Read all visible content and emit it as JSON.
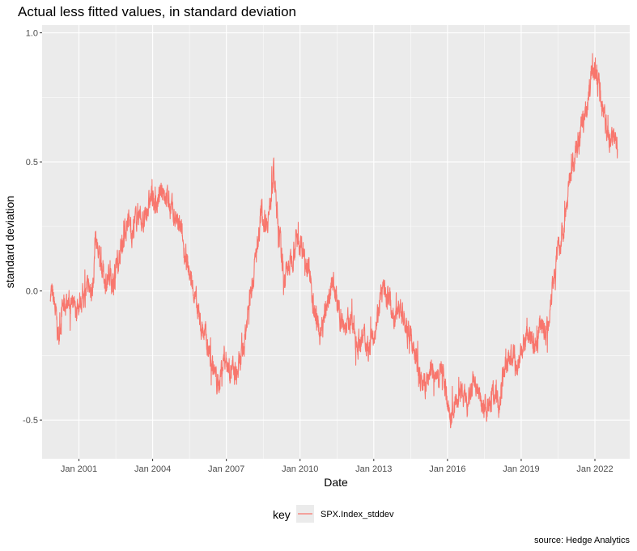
{
  "chart_data": {
    "type": "line",
    "title": "Actual less fitted values, in standard deviation",
    "xlabel": "Date",
    "ylabel": "standard deviation",
    "caption": "source: Hedge Analytics",
    "x_ticks": [
      "Jan 2001",
      "Jan 2004",
      "Jan 2007",
      "Jan 2010",
      "Jan 2013",
      "Jan 2016",
      "Jan 2019",
      "Jan 2022"
    ],
    "y_ticks": [
      "-0.5",
      "0.0",
      "0.5",
      "1.0"
    ],
    "ylim": [
      -0.65,
      1.03
    ],
    "xlim": [
      "1999-07",
      "2023-06"
    ],
    "grid": true,
    "legend": {
      "title": "key",
      "position": "bottom"
    },
    "series": [
      {
        "name": "SPX.Index_stddev",
        "color": "#F8766D",
        "points": [
          [
            "1999-11",
            0.0
          ],
          [
            "2000-01",
            -0.05
          ],
          [
            "2000-03",
            -0.18
          ],
          [
            "2000-05",
            -0.06
          ],
          [
            "2000-08",
            -0.04
          ],
          [
            "2000-11",
            -0.08
          ],
          [
            "2001-02",
            -0.03
          ],
          [
            "2001-05",
            0.0
          ],
          [
            "2001-08",
            0.02
          ],
          [
            "2001-09",
            0.22
          ],
          [
            "2001-11",
            0.12
          ],
          [
            "2002-02",
            0.04
          ],
          [
            "2002-05",
            0.03
          ],
          [
            "2002-08",
            0.12
          ],
          [
            "2002-10",
            0.18
          ],
          [
            "2003-01",
            0.28
          ],
          [
            "2003-03",
            0.22
          ],
          [
            "2003-06",
            0.31
          ],
          [
            "2003-09",
            0.26
          ],
          [
            "2003-12",
            0.36
          ],
          [
            "2004-03",
            0.33
          ],
          [
            "2004-06",
            0.4
          ],
          [
            "2004-09",
            0.34
          ],
          [
            "2004-12",
            0.28
          ],
          [
            "2005-03",
            0.22
          ],
          [
            "2005-06",
            0.1
          ],
          [
            "2005-09",
            0.0
          ],
          [
            "2005-12",
            -0.12
          ],
          [
            "2006-03",
            -0.18
          ],
          [
            "2006-06",
            -0.28
          ],
          [
            "2006-09",
            -0.37
          ],
          [
            "2006-12",
            -0.25
          ],
          [
            "2007-03",
            -0.3
          ],
          [
            "2007-06",
            -0.33
          ],
          [
            "2007-09",
            -0.25
          ],
          [
            "2007-12",
            -0.05
          ],
          [
            "2008-03",
            0.1
          ],
          [
            "2008-06",
            0.3
          ],
          [
            "2008-08",
            0.27
          ],
          [
            "2008-10",
            0.3
          ],
          [
            "2008-12",
            0.47
          ],
          [
            "2009-02",
            0.28
          ],
          [
            "2009-05",
            0.05
          ],
          [
            "2009-08",
            0.1
          ],
          [
            "2009-11",
            0.2
          ],
          [
            "2010-02",
            0.18
          ],
          [
            "2010-05",
            0.1
          ],
          [
            "2010-08",
            -0.08
          ],
          [
            "2010-11",
            -0.18
          ],
          [
            "2011-02",
            -0.05
          ],
          [
            "2011-05",
            0.05
          ],
          [
            "2011-08",
            -0.1
          ],
          [
            "2011-11",
            -0.14
          ],
          [
            "2012-02",
            -0.12
          ],
          [
            "2012-05",
            -0.2
          ],
          [
            "2012-08",
            -0.18
          ],
          [
            "2012-11",
            -0.22
          ],
          [
            "2013-02",
            -0.12
          ],
          [
            "2013-05",
            0.0
          ],
          [
            "2013-08",
            -0.02
          ],
          [
            "2013-11",
            -0.1
          ],
          [
            "2014-02",
            -0.06
          ],
          [
            "2014-05",
            -0.15
          ],
          [
            "2014-08",
            -0.2
          ],
          [
            "2014-11",
            -0.32
          ],
          [
            "2015-02",
            -0.38
          ],
          [
            "2015-05",
            -0.3
          ],
          [
            "2015-08",
            -0.35
          ],
          [
            "2015-11",
            -0.3
          ],
          [
            "2016-02",
            -0.5
          ],
          [
            "2016-05",
            -0.43
          ],
          [
            "2016-08",
            -0.4
          ],
          [
            "2016-11",
            -0.45
          ],
          [
            "2017-02",
            -0.35
          ],
          [
            "2017-05",
            -0.42
          ],
          [
            "2017-08",
            -0.45
          ],
          [
            "2017-11",
            -0.38
          ],
          [
            "2018-02",
            -0.45
          ],
          [
            "2018-05",
            -0.3
          ],
          [
            "2018-08",
            -0.25
          ],
          [
            "2018-11",
            -0.3
          ],
          [
            "2019-02",
            -0.2
          ],
          [
            "2019-05",
            -0.15
          ],
          [
            "2019-08",
            -0.22
          ],
          [
            "2019-11",
            -0.12
          ],
          [
            "2020-02",
            -0.15
          ],
          [
            "2020-04",
            0.02
          ],
          [
            "2020-07",
            0.15
          ],
          [
            "2020-10",
            0.25
          ],
          [
            "2021-01",
            0.45
          ],
          [
            "2021-04",
            0.55
          ],
          [
            "2021-07",
            0.65
          ],
          [
            "2021-10",
            0.75
          ],
          [
            "2021-12",
            0.88
          ],
          [
            "2022-02",
            0.82
          ],
          [
            "2022-05",
            0.7
          ],
          [
            "2022-08",
            0.58
          ],
          [
            "2022-10",
            0.62
          ],
          [
            "2022-12",
            0.55
          ]
        ]
      }
    ]
  }
}
